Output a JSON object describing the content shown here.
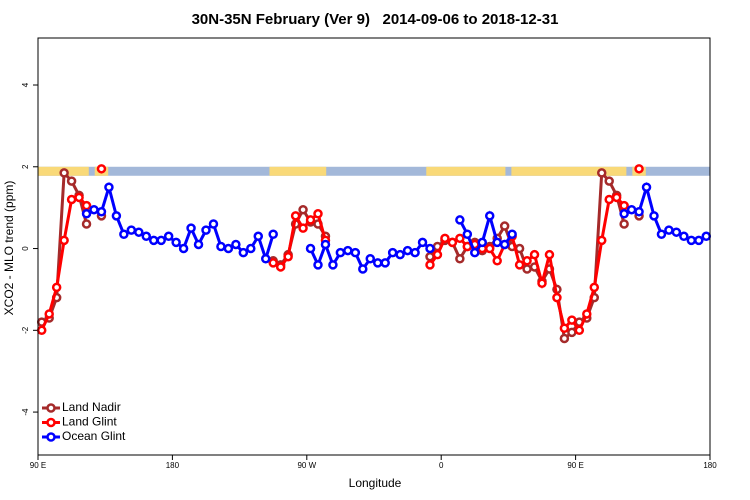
{
  "chart_data": {
    "type": "line",
    "title": "30N-35N February (Ver 9)   2014-09-06 to 2018-12-31",
    "x_label": "Longitude",
    "y_label": "XCO2 - MLO trend (ppm)",
    "xlim": [
      90,
      540
    ],
    "ylim": [
      -5.05,
      5.15
    ],
    "xticks": [
      {
        "value": 90,
        "label": "90 E"
      },
      180,
      {
        "value": 270,
        "label": "90 W"
      },
      {
        "value": 360,
        "label": "0"
      },
      {
        "value": 450,
        "label": "90 E"
      },
      {
        "value": 540,
        "label": "180"
      }
    ],
    "yticks": [
      -4,
      -2,
      0,
      2,
      4
    ],
    "grid": false,
    "legend": "bottom-left",
    "land_strip": {
      "ylim": [
        1.78,
        2.0
      ],
      "ocean_color": "#a3b8d9",
      "land_color": "#f9d978",
      "land": [
        [
          90,
          124
        ],
        [
          128,
          137
        ],
        [
          245,
          283
        ],
        [
          350,
          403
        ],
        [
          407,
          484
        ],
        [
          488,
          497
        ]
      ]
    },
    "series": [
      {
        "name": "Land Nadir",
        "color": "#a52a2a",
        "x": [
          92.5,
          97.5,
          102.5,
          107.5,
          112.5,
          117.5,
          122.5,
          127.5,
          132.5,
          137.5,
          247.5,
          252.5,
          257.5,
          262.5,
          267.5,
          272.5,
          277.5,
          282.5,
          287.5,
          352.5,
          357.5,
          362.5,
          367.5,
          372.5,
          377.5,
          382.5,
          387.5,
          392.5,
          397.5,
          402.5,
          407.5,
          412.5,
          417.5,
          422.5,
          427.5,
          432.5,
          437.5,
          442.5,
          447.5,
          452.5,
          457.5,
          462.5,
          467.5,
          472.5,
          477.5,
          482.5,
          487.5,
          492.5
        ],
        "values": [
          -1.8,
          -1.7,
          -1.2,
          1.85,
          1.65,
          1.3,
          0.6,
          null,
          0.8,
          null,
          -0.3,
          -0.4,
          -0.15,
          0.6,
          0.95,
          0.65,
          0.6,
          0.3,
          null,
          -0.2,
          0.05,
          0.2,
          0.15,
          -0.25,
          0.05,
          0.15,
          -0.05,
          0.05,
          0.25,
          0.55,
          0.05,
          0.0,
          -0.5,
          -0.45,
          -0.8,
          -0.5,
          -1.0,
          -2.2,
          -2.05,
          -1.8,
          -1.7,
          -1.2,
          1.85,
          1.65,
          1.3,
          0.6,
          null,
          0.8
        ]
      },
      {
        "name": "Land Glint",
        "color": "#ff0000",
        "x": [
          92.5,
          97.5,
          102.5,
          107.5,
          112.5,
          117.5,
          122.5,
          127.5,
          132.5,
          137.5,
          247.5,
          252.5,
          257.5,
          262.5,
          267.5,
          272.5,
          277.5,
          282.5,
          287.5,
          352.5,
          357.5,
          362.5,
          367.5,
          372.5,
          377.5,
          382.5,
          387.5,
          392.5,
          397.5,
          402.5,
          407.5,
          412.5,
          417.5,
          422.5,
          427.5,
          432.5,
          437.5,
          442.5,
          447.5,
          452.5,
          457.5,
          462.5,
          467.5,
          472.5,
          477.5,
          482.5,
          487.5,
          492.5
        ],
        "values": [
          -2.0,
          -1.6,
          -0.95,
          0.2,
          1.2,
          1.25,
          1.05,
          null,
          1.95,
          null,
          -0.35,
          -0.45,
          -0.2,
          0.8,
          0.5,
          0.7,
          0.85,
          0.2,
          null,
          -0.4,
          -0.15,
          0.25,
          0.15,
          0.25,
          0.05,
          0.1,
          0.0,
          0.0,
          -0.3,
          0.1,
          0.3,
          -0.4,
          -0.3,
          -0.15,
          -0.85,
          -0.15,
          -1.2,
          -1.95,
          -1.75,
          -2.0,
          -1.6,
          -0.95,
          0.2,
          1.2,
          1.25,
          1.05,
          null,
          1.95
        ]
      },
      {
        "name": "Ocean Glint",
        "color": "#0000ff",
        "x": [
          122.5,
          127.5,
          132.5,
          137.5,
          142.5,
          147.5,
          152.5,
          157.5,
          162.5,
          167.5,
          172.5,
          177.5,
          182.5,
          187.5,
          192.5,
          197.5,
          202.5,
          207.5,
          212.5,
          217.5,
          222.5,
          227.5,
          232.5,
          237.5,
          242.5,
          247.5,
          252.5,
          272.5,
          277.5,
          282.5,
          287.5,
          292.5,
          297.5,
          302.5,
          307.5,
          312.5,
          317.5,
          322.5,
          327.5,
          332.5,
          337.5,
          342.5,
          347.5,
          352.5,
          357.5,
          372.5,
          377.5,
          382.5,
          387.5,
          392.5,
          397.5,
          402.5,
          407.5,
          412.5,
          482.5,
          487.5,
          492.5,
          497.5,
          502.5,
          507.5,
          512.5,
          517.5,
          522.5,
          527.5,
          532.5,
          537.5
        ],
        "values": [
          0.85,
          0.95,
          0.9,
          1.5,
          0.8,
          0.35,
          0.45,
          0.4,
          0.3,
          0.2,
          0.2,
          0.3,
          0.15,
          0.0,
          0.5,
          0.1,
          0.45,
          0.6,
          0.05,
          0.0,
          0.1,
          -0.1,
          0.0,
          0.3,
          -0.25,
          0.35,
          null,
          0.0,
          -0.4,
          0.1,
          -0.4,
          -0.1,
          -0.05,
          -0.1,
          -0.5,
          -0.25,
          -0.35,
          -0.35,
          -0.1,
          -0.15,
          -0.05,
          -0.1,
          0.15,
          0.0,
          null,
          0.7,
          0.35,
          -0.1,
          0.15,
          0.8,
          0.15,
          0.1,
          0.35,
          null,
          0.85,
          0.95,
          0.9,
          1.5,
          0.8,
          0.35,
          0.45,
          0.4,
          0.3,
          0.2,
          0.2,
          0.3
        ]
      }
    ]
  }
}
